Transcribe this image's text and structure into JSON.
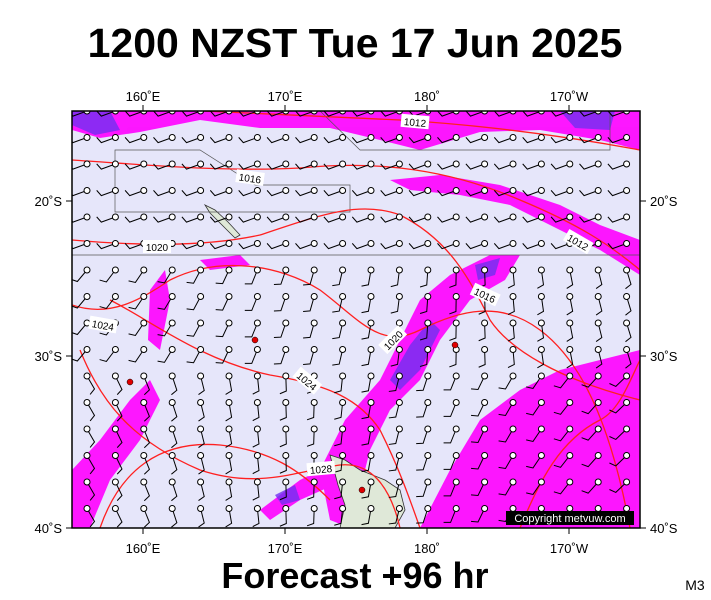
{
  "header": {
    "title": "1200 NZST Tue 17 Jun 2025"
  },
  "axes": {
    "top": [
      "160˚E",
      "170˚E",
      "180˚",
      "170˚W"
    ],
    "bottom": [
      "160˚E",
      "170˚E",
      "180˚",
      "170˚W"
    ],
    "left": [
      "20˚S",
      "30˚S",
      "40˚S"
    ],
    "right": [
      "20˚S",
      "30˚S",
      "40˚S"
    ]
  },
  "isobar_labels": [
    "1012",
    "1016",
    "1020",
    "1024",
    "1016",
    "1020",
    "1024",
    "1012",
    "1028"
  ],
  "copyright": "Copyright metvuw.com",
  "footer": {
    "forecast": "Forecast +96 hr",
    "model": "M3"
  }
}
